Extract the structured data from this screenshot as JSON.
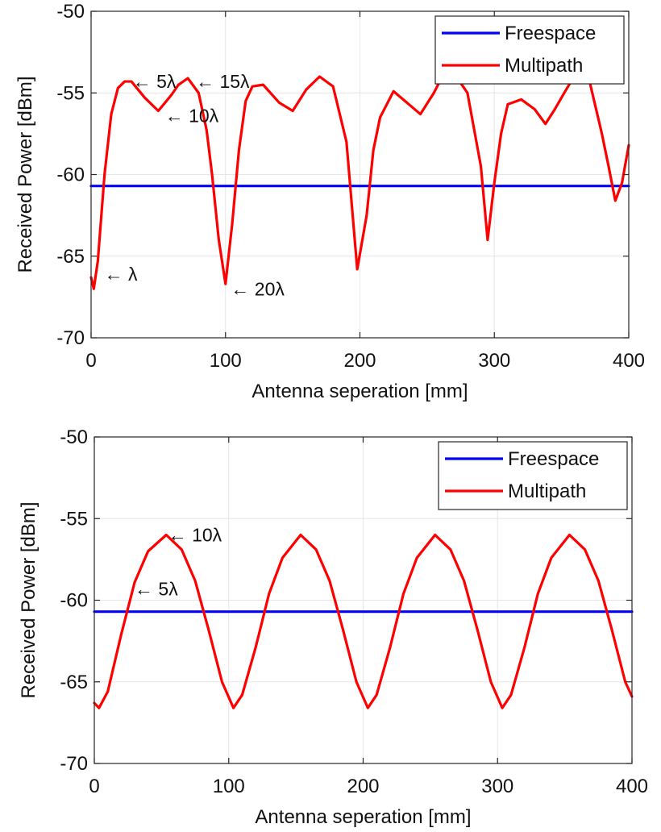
{
  "chart_data": [
    {
      "type": "line",
      "xlabel": "Antenna seperation [mm]",
      "ylabel": "Received Power [dBm]",
      "xlim": [
        0,
        400
      ],
      "ylim": [
        -70,
        -50
      ],
      "xticks": [
        0,
        100,
        200,
        300,
        400
      ],
      "yticks": [
        -70,
        -65,
        -60,
        -55,
        -50
      ],
      "grid": true,
      "legend_position": "top-right",
      "series": [
        {
          "name": "Freespace",
          "color": "#0000ff",
          "x": [
            0,
            400
          ],
          "y": [
            -60.7,
            -60.7
          ]
        },
        {
          "name": "Multipath",
          "color": "#ff0000",
          "x": [
            0,
            2,
            5,
            10,
            15,
            20,
            25,
            30,
            40,
            50,
            60,
            65,
            72,
            80,
            86,
            90,
            95,
            100,
            105,
            110,
            115,
            120,
            128,
            140,
            150,
            160,
            170,
            180,
            190,
            198,
            205,
            210,
            215,
            225,
            235,
            245,
            255,
            260,
            270,
            280,
            290,
            295,
            300,
            305,
            310,
            320,
            330,
            338,
            345,
            352,
            360,
            370,
            380,
            385,
            390,
            395,
            400
          ],
          "y": [
            -66.3,
            -67.0,
            -65.3,
            -60.0,
            -56.3,
            -54.7,
            -54.3,
            -54.3,
            -55.3,
            -56.1,
            -55.1,
            -54.5,
            -54.1,
            -55.0,
            -57.3,
            -60.0,
            -64.0,
            -66.7,
            -63.0,
            -58.5,
            -55.5,
            -54.6,
            -54.5,
            -55.6,
            -56.1,
            -54.8,
            -54.0,
            -54.6,
            -58.0,
            -65.8,
            -62.5,
            -58.5,
            -56.5,
            -54.9,
            -55.6,
            -56.3,
            -55.0,
            -54.2,
            -53.8,
            -55.0,
            -59.5,
            -64.0,
            -60.5,
            -57.5,
            -55.7,
            -55.4,
            -56.0,
            -56.9,
            -56.0,
            -55.0,
            -53.9,
            -54.0,
            -57.5,
            -59.5,
            -61.6,
            -60.5,
            -58.2
          ]
        }
      ],
      "annotations": [
        {
          "text": "← λ",
          "x": 10,
          "y": -66.1
        },
        {
          "text": "← 5λ",
          "x": 31,
          "y": -54.3
        },
        {
          "text": "← 10λ",
          "x": 55,
          "y": -56.4
        },
        {
          "text": "← 15λ",
          "x": 78,
          "y": -54.3
        },
        {
          "text": "← 20λ",
          "x": 104,
          "y": -67.0
        }
      ]
    },
    {
      "type": "line",
      "xlabel": "Antenna seperation [mm]",
      "ylabel": "Received Power [dBm]",
      "xlim": [
        0,
        400
      ],
      "ylim": [
        -70,
        -50
      ],
      "xticks": [
        0,
        100,
        200,
        300,
        400
      ],
      "yticks": [
        -70,
        -65,
        -60,
        -55,
        -50
      ],
      "grid": true,
      "legend_position": "top-right",
      "series": [
        {
          "name": "Freespace",
          "color": "#0000ff",
          "x": [
            0,
            400
          ],
          "y": [
            -60.7,
            -60.7
          ]
        },
        {
          "name": "Multipath",
          "color": "#ff0000",
          "x": [
            0,
            3.5,
            10,
            20,
            30,
            40,
            53.5,
            65,
            75,
            85,
            95,
            103.5,
            110,
            120,
            130,
            140,
            153.5,
            165,
            175,
            185,
            195,
            203.5,
            210,
            220,
            230,
            240,
            253.5,
            265,
            275,
            285,
            295,
            303.5,
            310,
            320,
            330,
            340,
            353.5,
            365,
            375,
            385,
            395,
            400
          ],
          "y": [
            -66.3,
            -66.6,
            -65.6,
            -62.1,
            -58.9,
            -57.0,
            -56.0,
            -56.9,
            -58.8,
            -61.8,
            -65.0,
            -66.6,
            -65.8,
            -62.9,
            -59.6,
            -57.4,
            -56.0,
            -56.9,
            -58.8,
            -61.8,
            -65.0,
            -66.6,
            -65.8,
            -62.9,
            -59.6,
            -57.4,
            -56.0,
            -56.9,
            -58.8,
            -61.8,
            -65.0,
            -66.6,
            -65.8,
            -62.9,
            -59.6,
            -57.4,
            -56.0,
            -56.9,
            -58.8,
            -61.8,
            -65.0,
            -65.9
          ]
        }
      ],
      "annotations": [
        {
          "text": "← 5λ",
          "x": 30,
          "y": -59.3
        },
        {
          "text": "← 10λ",
          "x": 55,
          "y": -56.0
        }
      ]
    }
  ]
}
